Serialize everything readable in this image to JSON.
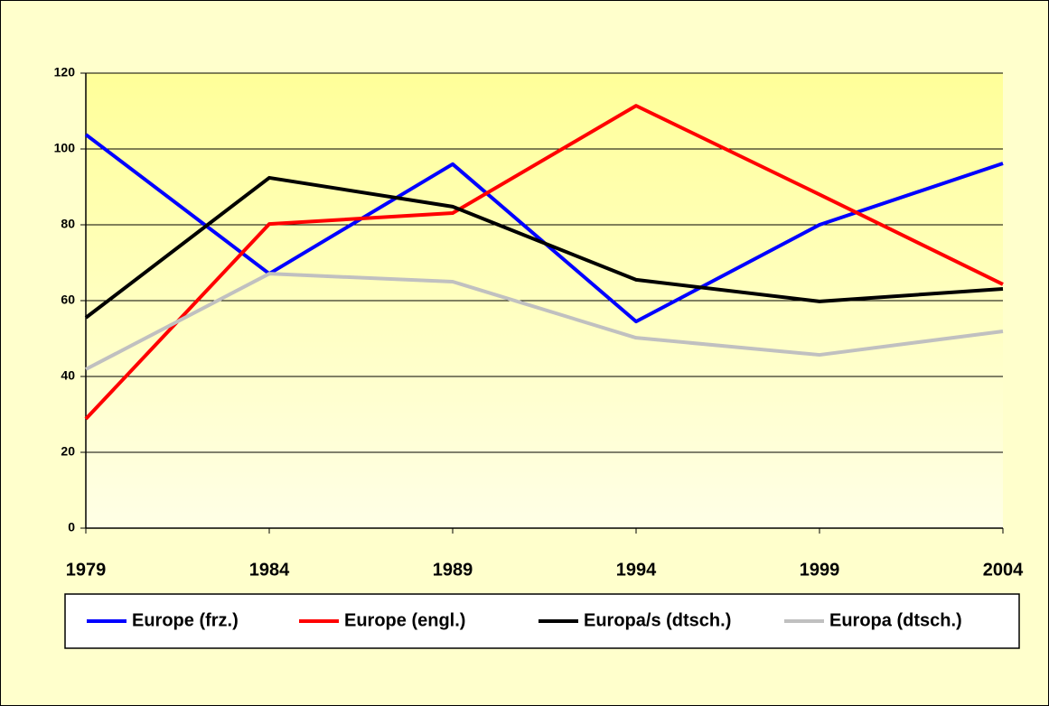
{
  "chart_data": {
    "type": "line",
    "categories": [
      "1979",
      "1984",
      "1989",
      "1994",
      "1999",
      "2004"
    ],
    "series": [
      {
        "name": "Europe (frz.)",
        "color": "#0000ff",
        "values": [
          103.8,
          67.1,
          96,
          54.5,
          80,
          96.2
        ]
      },
      {
        "name": "Europe (engl.)",
        "color": "#ff0000",
        "values": [
          28.8,
          80.2,
          83.1,
          111.4,
          88,
          64.3
        ]
      },
      {
        "name": "Europa/s (dtsch.)",
        "color": "#000000",
        "values": [
          55.5,
          92.4,
          84.8,
          65.5,
          59.8,
          63.1
        ]
      },
      {
        "name": "Europa (dtsch.)",
        "color": "#c0c0c0",
        "values": [
          41.9,
          67.1,
          65,
          50.2,
          45.7,
          51.9
        ]
      }
    ],
    "ylim": [
      0,
      120
    ],
    "yticks": [
      0,
      20,
      40,
      60,
      80,
      100,
      120
    ],
    "grid": true,
    "legend": "bottom"
  }
}
